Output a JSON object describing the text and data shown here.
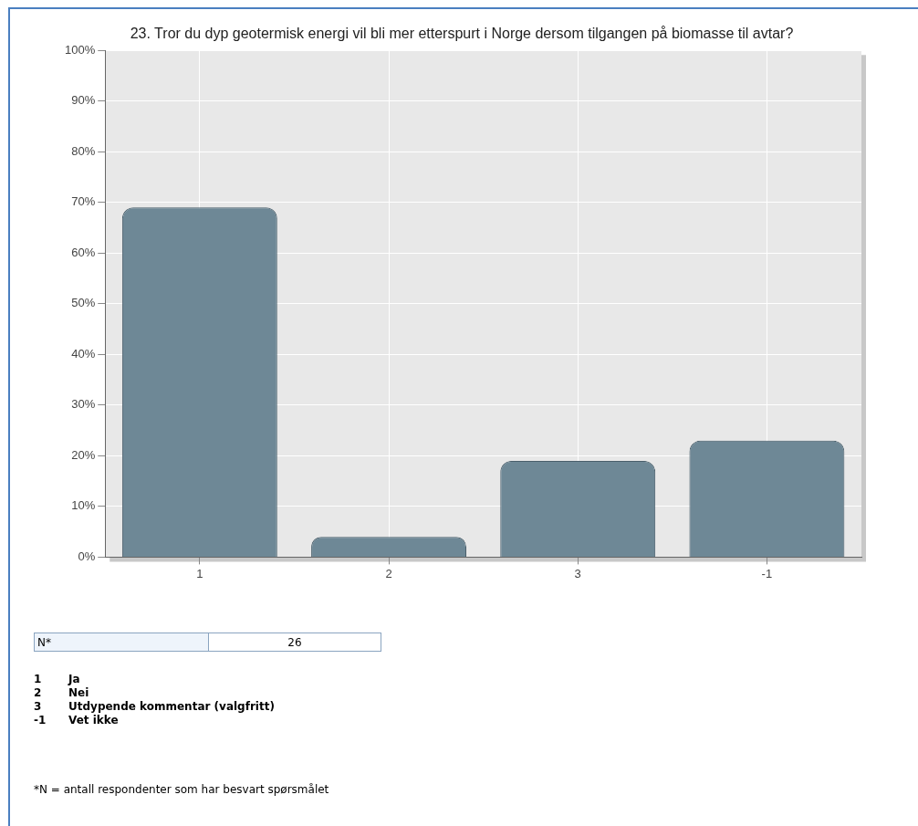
{
  "chart_data": {
    "type": "bar",
    "title": "23. Tror du dyp geotermisk energi vil bli mer etterspurt i Norge dersom tilgangen på biomasse til avtar?",
    "categories": [
      "1",
      "2",
      "3",
      "-1"
    ],
    "values": [
      69,
      4,
      19,
      23
    ],
    "color": "#6e8896",
    "ylim": [
      0,
      100
    ],
    "yticks": [
      {
        "value": 0,
        "label": "0%"
      },
      {
        "value": 10,
        "label": "10%"
      },
      {
        "value": 20,
        "label": "20%"
      },
      {
        "value": 30,
        "label": "30%"
      },
      {
        "value": 40,
        "label": "40%"
      },
      {
        "value": 50,
        "label": "50%"
      },
      {
        "value": 60,
        "label": "60%"
      },
      {
        "value": 70,
        "label": "70%"
      },
      {
        "value": 80,
        "label": "80%"
      },
      {
        "value": 90,
        "label": "90%"
      },
      {
        "value": 100,
        "label": "100%"
      }
    ],
    "grid": true,
    "annotations": [
      "N*",
      "26",
      "1 Ja",
      "2 Nei",
      "3 Utdypende kommentar (valgfritt)",
      "-1 Vet ikke",
      "*N = antall respondenter som har besvart spørsmålet"
    ]
  }
}
